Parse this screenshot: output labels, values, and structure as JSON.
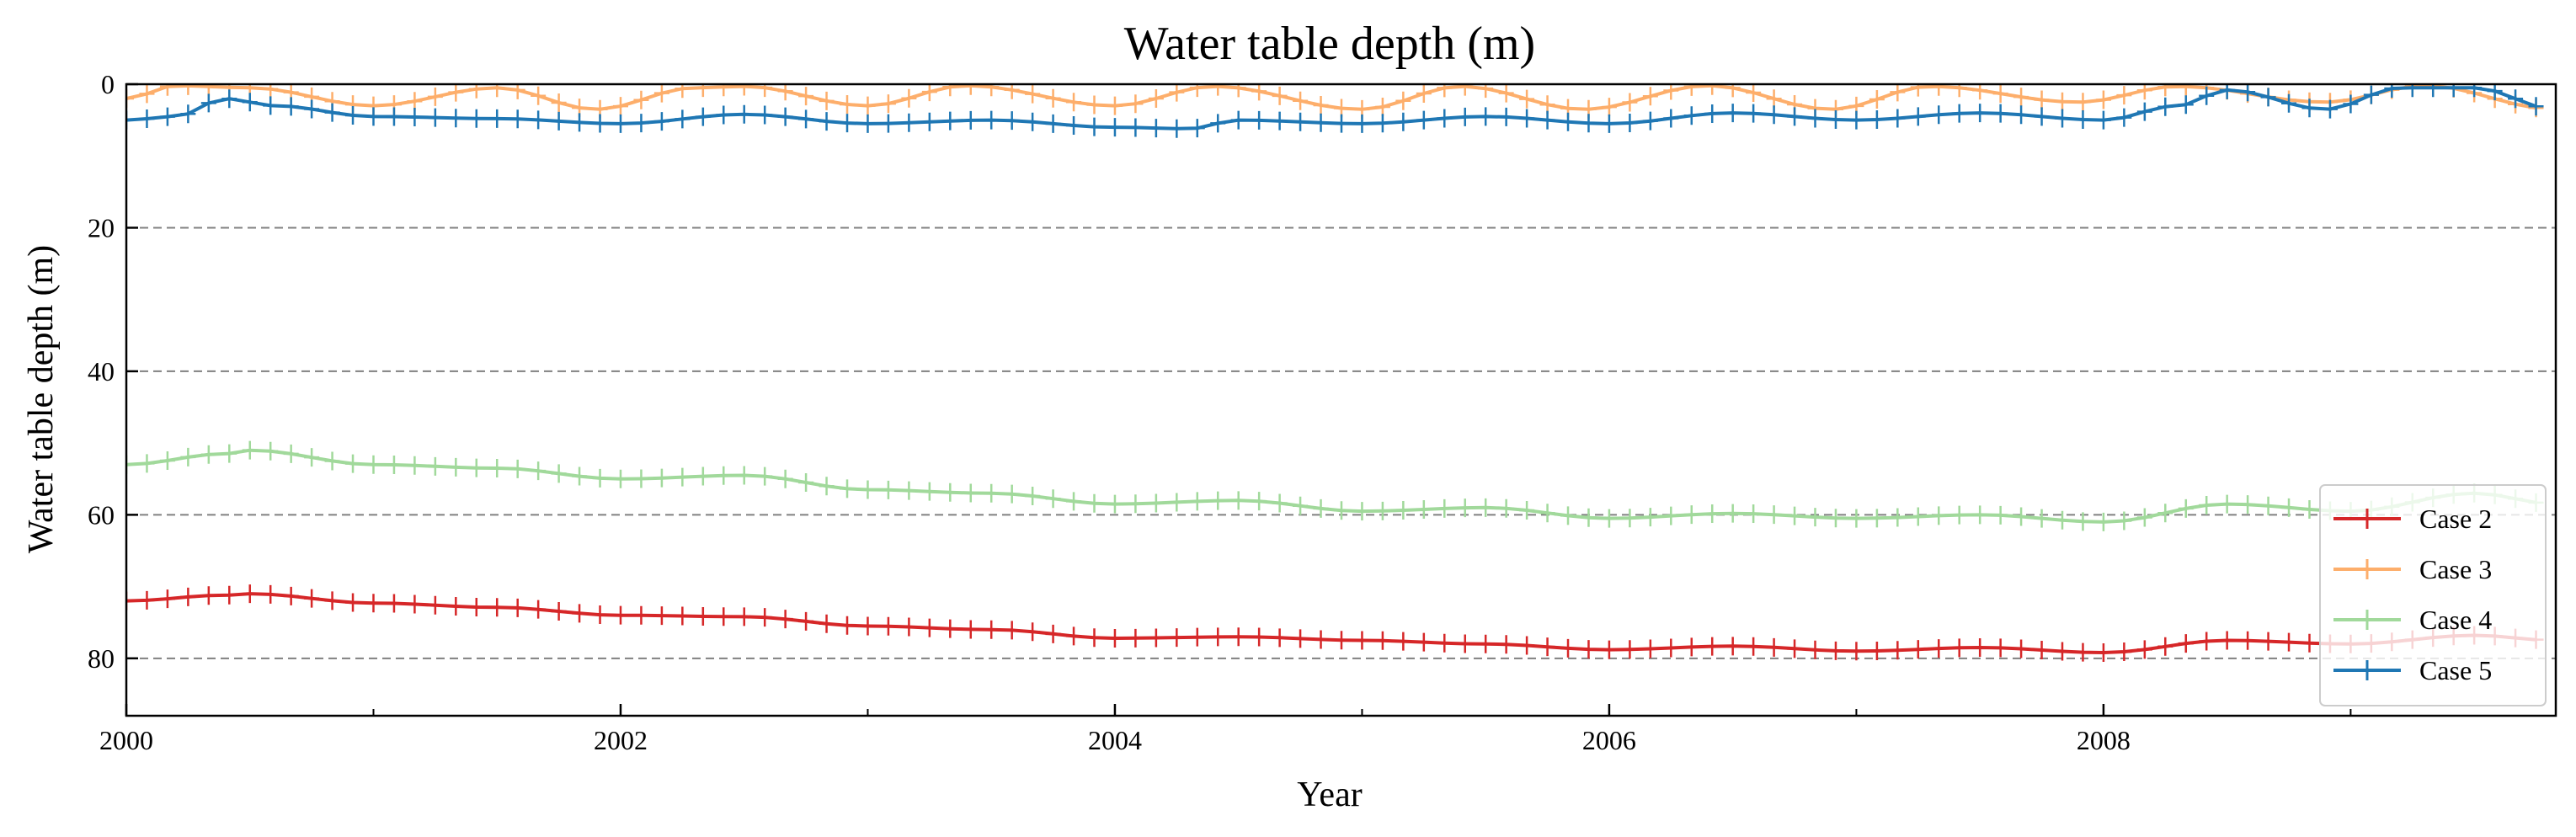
{
  "chart_data": {
    "type": "line",
    "title": "Water table depth (m)",
    "xlabel": "Year",
    "ylabel": "Water table depth (m)",
    "xlim": [
      2000.0,
      2009.83
    ],
    "ylim": [
      0,
      88
    ],
    "y_inverted": true,
    "x_ticks": [
      2000,
      2002,
      2004,
      2006,
      2008
    ],
    "x_minor_ticks": [
      2001,
      2003,
      2005,
      2007,
      2009
    ],
    "y_ticks": [
      0,
      20,
      40,
      60,
      80
    ],
    "grid": {
      "axis": "y",
      "style": "dashed",
      "color": "#808080"
    },
    "legend": {
      "placement": "lower-right"
    },
    "marker": "+",
    "series": [
      {
        "name": "Case 2",
        "color": "#d62728",
        "points": [
          [
            2000.0,
            72
          ],
          [
            2000.4,
            71.2
          ],
          [
            2000.5,
            71
          ],
          [
            2001.0,
            72.3
          ],
          [
            2001.5,
            72.9
          ],
          [
            2002.0,
            74
          ],
          [
            2002.5,
            74.2
          ],
          [
            2003.0,
            75.5
          ],
          [
            2003.5,
            76
          ],
          [
            2004.0,
            77.2
          ],
          [
            2004.5,
            77
          ],
          [
            2005.0,
            77.5
          ],
          [
            2005.5,
            78
          ],
          [
            2006.0,
            78.8
          ],
          [
            2006.5,
            78.3
          ],
          [
            2007.0,
            79
          ],
          [
            2007.5,
            78.5
          ],
          [
            2008.0,
            79.2
          ],
          [
            2008.5,
            77.5
          ],
          [
            2009.0,
            78
          ],
          [
            2009.5,
            76.8
          ],
          [
            2009.83,
            77.5
          ]
        ]
      },
      {
        "name": "Case 3",
        "color": "#fdae6b",
        "points": [
          [
            2000.0,
            2
          ],
          [
            2000.2,
            0.2
          ],
          [
            2000.5,
            0.5
          ],
          [
            2001.0,
            3
          ],
          [
            2001.5,
            0.5
          ],
          [
            2001.9,
            3.5
          ],
          [
            2002.3,
            0.5
          ],
          [
            2002.5,
            0.3
          ],
          [
            2003.0,
            3
          ],
          [
            2003.4,
            0.2
          ],
          [
            2004.0,
            3
          ],
          [
            2004.4,
            0.3
          ],
          [
            2005.0,
            3.5
          ],
          [
            2005.4,
            0.3
          ],
          [
            2005.9,
            3.5
          ],
          [
            2006.4,
            0.2
          ],
          [
            2006.9,
            3.5
          ],
          [
            2007.3,
            0.3
          ],
          [
            2007.9,
            2.5
          ],
          [
            2008.3,
            0.3
          ],
          [
            2008.9,
            2.5
          ],
          [
            2009.3,
            0.2
          ],
          [
            2009.83,
            3.5
          ]
        ]
      },
      {
        "name": "Case 4",
        "color": "#a1d99b",
        "points": [
          [
            2000.0,
            53
          ],
          [
            2000.4,
            51.5
          ],
          [
            2000.5,
            51
          ],
          [
            2001.0,
            53
          ],
          [
            2001.5,
            53.5
          ],
          [
            2002.0,
            55
          ],
          [
            2002.5,
            54.5
          ],
          [
            2003.0,
            56.5
          ],
          [
            2003.5,
            57
          ],
          [
            2004.0,
            58.5
          ],
          [
            2004.5,
            58
          ],
          [
            2005.0,
            59.5
          ],
          [
            2005.5,
            59
          ],
          [
            2006.0,
            60.5
          ],
          [
            2006.5,
            59.8
          ],
          [
            2007.0,
            60.5
          ],
          [
            2007.5,
            60
          ],
          [
            2008.0,
            61
          ],
          [
            2008.5,
            58.5
          ],
          [
            2009.0,
            59.5
          ],
          [
            2009.5,
            57
          ],
          [
            2009.83,
            58.5
          ]
        ]
      },
      {
        "name": "Case 5",
        "color": "#1f77b4",
        "points": [
          [
            2000.0,
            5
          ],
          [
            2000.2,
            4.5
          ],
          [
            2000.4,
            2
          ],
          [
            2000.6,
            3
          ],
          [
            2001.0,
            4.5
          ],
          [
            2001.5,
            4.8
          ],
          [
            2002.0,
            5.5
          ],
          [
            2002.5,
            4.2
          ],
          [
            2003.0,
            5.5
          ],
          [
            2003.5,
            5
          ],
          [
            2004.0,
            6
          ],
          [
            2004.3,
            6.2
          ],
          [
            2004.5,
            5
          ],
          [
            2005.0,
            5.5
          ],
          [
            2005.5,
            4.5
          ],
          [
            2006.0,
            5.5
          ],
          [
            2006.5,
            4
          ],
          [
            2007.0,
            5
          ],
          [
            2007.5,
            4
          ],
          [
            2008.0,
            5
          ],
          [
            2008.3,
            3
          ],
          [
            2008.5,
            0.8
          ],
          [
            2008.9,
            3.5
          ],
          [
            2009.2,
            0.5
          ],
          [
            2009.5,
            0.5
          ],
          [
            2009.83,
            3.5
          ]
        ]
      }
    ]
  }
}
